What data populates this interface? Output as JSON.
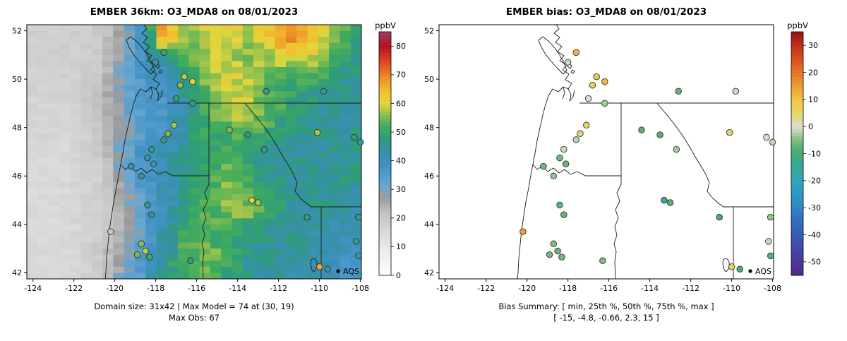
{
  "panels": {
    "left": {
      "title": "EMBER 36km: O3_MDA8 on 08/01/2023",
      "colorbar_label": "ppbV",
      "caption_line1": "Domain size: 31x42 | Max Model = 74 at (30, 19)",
      "caption_line2": "Max Obs: 67",
      "legend_label": "AQS"
    },
    "right": {
      "title": "EMBER bias: O3_MDA8 on 08/01/2023",
      "colorbar_label": "ppbV",
      "caption_line1": "Bias Summary: [ min, 25th %, 50th %, 75th %, max ]",
      "caption_line2": "[ -15,  -4.8,  -0.66,  2.3,  15 ]",
      "legend_label": "AQS"
    }
  },
  "axes": {
    "xlim": [
      -124.3,
      -107.95
    ],
    "ylim": [
      41.75,
      52.25
    ],
    "x_ticks": [
      -124,
      -122,
      -120,
      -118,
      -116,
      -114,
      -112,
      -110,
      -108
    ],
    "y_ticks": [
      42,
      44,
      46,
      48,
      50,
      52
    ]
  },
  "chart_data": [
    {
      "type": "heatmap",
      "title": "EMBER 36km: O3_MDA8 on 08/01/2023",
      "units": "ppbV",
      "domain_size": "31x42",
      "max_model": 74,
      "max_model_at": "(30, 19)",
      "max_obs": 67,
      "colorbar": {
        "min": 0,
        "max": 85,
        "ticks": [
          0,
          10,
          20,
          30,
          40,
          50,
          60,
          70,
          80
        ],
        "stops": [
          [
            0,
            "#ffffff"
          ],
          [
            12,
            "#e3e3e3"
          ],
          [
            22,
            "#c2c2c2"
          ],
          [
            27,
            "#9b9b9b"
          ],
          [
            31,
            "#6aa7d2"
          ],
          [
            38,
            "#4292c6"
          ],
          [
            44,
            "#3691a4"
          ],
          [
            48,
            "#2f9e77"
          ],
          [
            52,
            "#41ab5d"
          ],
          [
            56,
            "#8cbf4f"
          ],
          [
            60,
            "#e3d63d"
          ],
          [
            64,
            "#f2c12f"
          ],
          [
            68,
            "#f0992a"
          ],
          [
            72,
            "#e4661f"
          ],
          [
            76,
            "#d6381d"
          ],
          [
            80,
            "#b01227"
          ],
          [
            85,
            "#9a4160"
          ]
        ]
      },
      "grid": {
        "ncols": 31,
        "nrows": 42,
        "coarse_ncols": 16,
        "coarse_nrows": 13,
        "coarse_values": [
          [
            18,
            18,
            18,
            20,
            26,
            36,
            70,
            56,
            58,
            60,
            58,
            62,
            69,
            66,
            56,
            50
          ],
          [
            18,
            18,
            18,
            20,
            28,
            38,
            48,
            53,
            56,
            58,
            56,
            58,
            64,
            62,
            53,
            48
          ],
          [
            17,
            17,
            18,
            20,
            30,
            37,
            40,
            50,
            56,
            60,
            58,
            55,
            52,
            55,
            50,
            46
          ],
          [
            17,
            17,
            18,
            22,
            30,
            35,
            38,
            45,
            52,
            58,
            60,
            52,
            50,
            48,
            46,
            44
          ],
          [
            16,
            16,
            18,
            22,
            28,
            34,
            37,
            43,
            50,
            56,
            58,
            55,
            48,
            46,
            45,
            44
          ],
          [
            16,
            16,
            17,
            20,
            27,
            34,
            38,
            44,
            50,
            52,
            55,
            50,
            46,
            45,
            44,
            45
          ],
          [
            15,
            15,
            16,
            20,
            30,
            38,
            42,
            46,
            48,
            50,
            48,
            46,
            45,
            44,
            45,
            46
          ],
          [
            15,
            15,
            16,
            18,
            28,
            36,
            42,
            46,
            50,
            54,
            50,
            46,
            45,
            44,
            45,
            47
          ],
          [
            15,
            15,
            16,
            18,
            26,
            34,
            40,
            46,
            52,
            56,
            52,
            48,
            46,
            45,
            46,
            45
          ],
          [
            15,
            15,
            16,
            18,
            24,
            32,
            40,
            48,
            52,
            55,
            57,
            50,
            46,
            45,
            44,
            43
          ],
          [
            15,
            15,
            16,
            18,
            24,
            30,
            42,
            50,
            52,
            50,
            48,
            46,
            45,
            44,
            43,
            41
          ],
          [
            15,
            15,
            16,
            20,
            26,
            34,
            44,
            52,
            55,
            52,
            48,
            46,
            44,
            43,
            42,
            40
          ],
          [
            15,
            15,
            16,
            20,
            28,
            36,
            46,
            52,
            55,
            50,
            46,
            44,
            43,
            42,
            40,
            38
          ]
        ]
      },
      "stations": {
        "columns": [
          "lon",
          "lat",
          "obs_ppbV"
        ],
        "rows": [
          [
            -117.6,
            51.1,
            50
          ],
          [
            -118.0,
            50.7,
            44
          ],
          [
            -116.6,
            50.1,
            58
          ],
          [
            -116.2,
            49.9,
            61
          ],
          [
            -116.8,
            49.75,
            56
          ],
          [
            -117.0,
            49.2,
            48
          ],
          [
            -116.2,
            49.0,
            46
          ],
          [
            -112.6,
            49.5,
            45
          ],
          [
            -109.8,
            49.5,
            48
          ],
          [
            -117.1,
            48.1,
            57
          ],
          [
            -117.4,
            47.75,
            55
          ],
          [
            -117.6,
            47.5,
            47
          ],
          [
            -114.4,
            47.9,
            55
          ],
          [
            -113.5,
            47.7,
            46
          ],
          [
            -110.1,
            47.8,
            57
          ],
          [
            -108.3,
            47.6,
            48
          ],
          [
            -108.0,
            47.4,
            46
          ],
          [
            -118.2,
            47.1,
            46
          ],
          [
            -118.4,
            46.75,
            44
          ],
          [
            -118.1,
            46.5,
            43
          ],
          [
            -119.2,
            46.4,
            44
          ],
          [
            -118.7,
            46.0,
            45
          ],
          [
            -112.7,
            47.1,
            46
          ],
          [
            -118.4,
            44.8,
            46
          ],
          [
            -118.2,
            44.4,
            45
          ],
          [
            -120.2,
            43.7,
            20
          ],
          [
            -118.7,
            43.2,
            56
          ],
          [
            -118.5,
            42.9,
            58
          ],
          [
            -118.9,
            42.75,
            55
          ],
          [
            -118.3,
            42.65,
            52
          ],
          [
            -113.3,
            45.0,
            62
          ],
          [
            -113.0,
            44.9,
            57
          ],
          [
            -110.6,
            44.3,
            48
          ],
          [
            -108.1,
            44.3,
            45
          ],
          [
            -108.2,
            43.3,
            46
          ],
          [
            -108.1,
            42.7,
            44
          ],
          [
            -110.0,
            42.25,
            67
          ],
          [
            -109.6,
            42.15,
            42
          ],
          [
            -116.3,
            42.5,
            48
          ]
        ]
      }
    },
    {
      "type": "scatter",
      "title": "EMBER bias: O3_MDA8 on 08/01/2023",
      "units": "ppbV",
      "bias_summary_labels": [
        "min",
        "25th %",
        "50th %",
        "75th %",
        "max"
      ],
      "bias_summary_values": [
        -15,
        -4.8,
        -0.66,
        2.3,
        15
      ],
      "colorbar": {
        "min": -55,
        "max": 35,
        "ticks": [
          -50,
          -40,
          -30,
          -20,
          -10,
          0,
          10,
          20,
          30
        ],
        "stops": [
          [
            -55,
            "#512b8c"
          ],
          [
            -45,
            "#4547ab"
          ],
          [
            -35,
            "#2f6fbe"
          ],
          [
            -27,
            "#2e93c6"
          ],
          [
            -20,
            "#2fa6bb"
          ],
          [
            -14,
            "#35a894"
          ],
          [
            -9,
            "#4dab72"
          ],
          [
            -5,
            "#7fbd7e"
          ],
          [
            -2,
            "#b8d6ae"
          ],
          [
            0,
            "#dcdcdc"
          ],
          [
            2,
            "#ded9a0"
          ],
          [
            5,
            "#e5d766"
          ],
          [
            9,
            "#eecb45"
          ],
          [
            13,
            "#f0ad36"
          ],
          [
            18,
            "#ea8429"
          ],
          [
            24,
            "#dc5520"
          ],
          [
            30,
            "#c22d1c"
          ],
          [
            35,
            "#8f1414"
          ]
        ]
      },
      "stations": {
        "columns": [
          "lon",
          "lat",
          "bias_ppbV"
        ],
        "rows": [
          [
            -117.6,
            51.1,
            12
          ],
          [
            -118.0,
            50.7,
            -1
          ],
          [
            -116.6,
            50.1,
            8
          ],
          [
            -116.2,
            49.9,
            11
          ],
          [
            -116.8,
            49.75,
            7
          ],
          [
            -117.0,
            49.2,
            0
          ],
          [
            -116.2,
            49.0,
            -3
          ],
          [
            -112.6,
            49.5,
            -7
          ],
          [
            -109.8,
            49.5,
            -1
          ],
          [
            -117.1,
            48.1,
            6
          ],
          [
            -117.4,
            47.75,
            5
          ],
          [
            -117.6,
            47.5,
            -2
          ],
          [
            -114.4,
            47.9,
            -8
          ],
          [
            -113.5,
            47.7,
            -8
          ],
          [
            -110.1,
            47.8,
            5
          ],
          [
            -108.3,
            47.6,
            0
          ],
          [
            -108.0,
            47.4,
            -2
          ],
          [
            -118.2,
            47.1,
            -1
          ],
          [
            -118.4,
            46.75,
            -6
          ],
          [
            -118.1,
            46.5,
            -7
          ],
          [
            -119.2,
            46.4,
            -6
          ],
          [
            -118.7,
            46.0,
            -4
          ],
          [
            -112.7,
            47.1,
            -3
          ],
          [
            -118.4,
            44.8,
            -7
          ],
          [
            -118.2,
            44.4,
            -7
          ],
          [
            -120.2,
            43.7,
            15
          ],
          [
            -118.7,
            43.2,
            -5
          ],
          [
            -118.5,
            42.9,
            -7
          ],
          [
            -118.9,
            42.75,
            -6
          ],
          [
            -118.3,
            42.65,
            -6
          ],
          [
            -113.3,
            45.0,
            -15
          ],
          [
            -113.0,
            44.9,
            -8
          ],
          [
            -110.6,
            44.3,
            -9
          ],
          [
            -108.1,
            44.3,
            -4
          ],
          [
            -108.2,
            43.3,
            -1
          ],
          [
            -108.1,
            42.7,
            -8
          ],
          [
            -110.0,
            42.25,
            6
          ],
          [
            -109.6,
            42.15,
            -9
          ],
          [
            -116.3,
            42.5,
            -5
          ]
        ]
      }
    }
  ]
}
